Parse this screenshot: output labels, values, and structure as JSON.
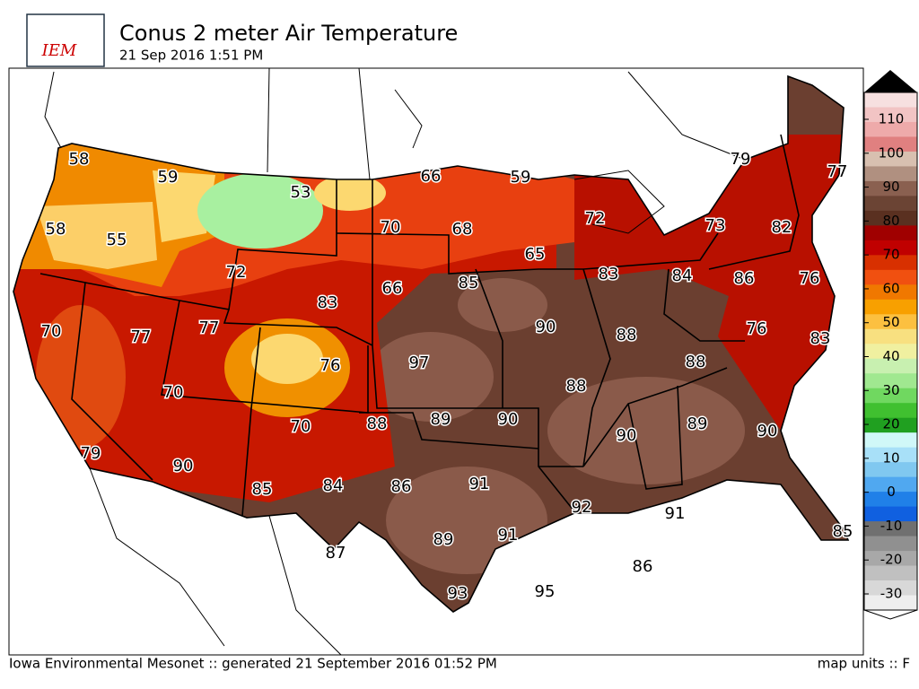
{
  "header": {
    "logo": "IEM",
    "title": "Conus 2 meter Air Temperature",
    "subtitle": "21 Sep 2016 1:51 PM"
  },
  "stations": [
    58,
    59,
    53,
    66,
    59,
    79,
    77,
    58,
    55,
    70,
    68,
    72,
    73,
    82,
    72,
    65,
    83,
    84,
    86,
    76,
    66,
    85,
    83,
    70,
    77,
    77,
    90,
    76,
    83,
    97,
    88,
    88,
    76,
    70,
    88,
    89,
    90,
    70,
    88,
    89,
    79,
    90,
    90,
    85,
    84,
    86,
    91,
    92,
    91,
    90,
    87,
    89,
    91,
    86,
    93,
    95,
    85
  ],
  "colorbar": {
    "ticks": [
      110,
      100,
      90,
      80,
      70,
      60,
      50,
      40,
      30,
      20,
      10,
      0,
      -10,
      -20,
      -30
    ]
  },
  "footer": {
    "source": "Iowa Environmental Mesonet :: generated 21 September 2016 01:52 PM",
    "units": "map units :: F"
  }
}
